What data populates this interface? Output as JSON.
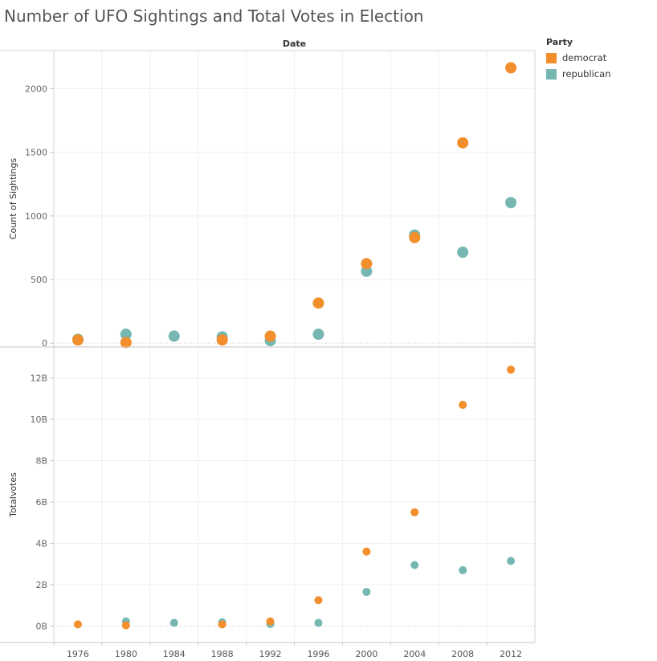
{
  "page": {
    "title": "Number of UFO Sightings and Total Votes in Election"
  },
  "legend": {
    "title": "Party",
    "items": [
      {
        "label": "democrat",
        "color": "#F28E2B"
      },
      {
        "label": "republican",
        "color": "#76B7B2"
      }
    ]
  },
  "chart_data": [
    {
      "type": "scatter",
      "title": "Number of UFO Sightings and Total Votes in Election",
      "xlabel": "Date",
      "ylabel": "Count of Sightings",
      "categories": [
        "1976",
        "1980",
        "1984",
        "1988",
        "1992",
        "1996",
        "2000",
        "2004",
        "2008",
        "2012"
      ],
      "ylim": [
        -30,
        2300
      ],
      "yticks": [
        0,
        500,
        1000,
        1500,
        2000
      ],
      "ytick_labels": [
        "0",
        "500",
        "1000",
        "1500",
        "2000"
      ],
      "grid": true,
      "legend": "top-right",
      "series": [
        {
          "name": "democrat",
          "color": "#F28E2B",
          "values": [
            25,
            5,
            null,
            25,
            55,
            315,
            625,
            830,
            1575,
            2165
          ]
        },
        {
          "name": "republican",
          "color": "#76B7B2",
          "values": [
            30,
            70,
            55,
            50,
            20,
            70,
            565,
            850,
            715,
            1105
          ]
        }
      ]
    },
    {
      "type": "scatter",
      "title": "",
      "xlabel": "Date",
      "ylabel": "Totalvotes",
      "categories": [
        "1976",
        "1980",
        "1984",
        "1988",
        "1992",
        "1996",
        "2000",
        "2004",
        "2008",
        "2012"
      ],
      "ylim": [
        -0.8,
        13.5
      ],
      "yticks": [
        0,
        2,
        4,
        6,
        8,
        10,
        12
      ],
      "ytick_labels": [
        "0B",
        "2B",
        "4B",
        "6B",
        "8B",
        "10B",
        "12B"
      ],
      "y_unit": "billions",
      "grid": true,
      "series": [
        {
          "name": "democrat",
          "color": "#F28E2B",
          "values": [
            0.08,
            0.03,
            null,
            0.08,
            0.22,
            1.25,
            3.6,
            5.5,
            10.7,
            12.4
          ]
        },
        {
          "name": "republican",
          "color": "#76B7B2",
          "values": [
            null,
            0.22,
            0.15,
            0.18,
            0.1,
            0.15,
            1.65,
            2.95,
            2.7,
            3.15
          ]
        }
      ]
    }
  ]
}
